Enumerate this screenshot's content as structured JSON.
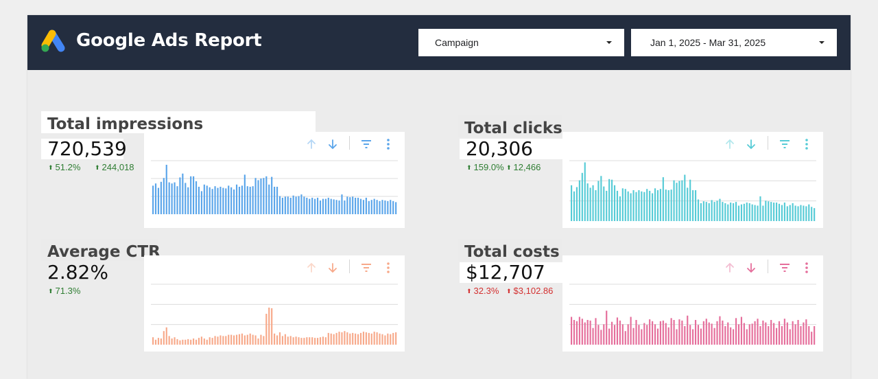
{
  "header": {
    "title": "Google Ads Report",
    "campaign_dropdown": {
      "label": "Campaign"
    },
    "date_dropdown": {
      "label": "Jan 1, 2025 - Mar 31, 2025"
    }
  },
  "colors": {
    "header_bg": "#232d3f",
    "impressions": "#5aa5ea",
    "clicks": "#56cbd6",
    "ctr": "#f7a98a",
    "costs": "#e56e9b",
    "positive": "#2e7d32",
    "negative": "#d32f2f"
  },
  "kpis": {
    "impressions": {
      "title": "Total impressions",
      "value": "720,539",
      "change_pct": "51.2%",
      "change_abs": "244,018",
      "direction": "up",
      "tone": "positive"
    },
    "clicks": {
      "title": "Total clicks",
      "value": "20,306",
      "change_pct": "159.0%",
      "change_abs": "12,466",
      "direction": "up",
      "tone": "positive"
    },
    "ctr": {
      "title": "Average CTR",
      "value": "2.82%",
      "change_pct": "71.3%",
      "direction": "up",
      "tone": "positive"
    },
    "costs": {
      "title": "Total costs",
      "value": "$12,707",
      "change_pct": "32.3%",
      "change_abs": "$3,102.86",
      "direction": "up",
      "tone": "negative"
    }
  },
  "toolbar_icons": [
    "sort-ascending-icon",
    "sort-descending-icon",
    "filter-icon",
    "more-options-icon"
  ],
  "chart_data": [
    {
      "type": "bar",
      "title": "Total impressions",
      "ylim": [
        0,
        100
      ],
      "values": [
        52,
        56,
        48,
        59,
        66,
        90,
        58,
        56,
        58,
        51,
        67,
        74,
        57,
        49,
        69,
        69,
        60,
        50,
        42,
        54,
        52,
        49,
        46,
        51,
        48,
        50,
        48,
        47,
        52,
        49,
        45,
        54,
        50,
        52,
        72,
        51,
        50,
        51,
        66,
        62,
        65,
        66,
        69,
        54,
        68,
        50,
        50,
        33,
        30,
        32,
        32,
        30,
        34,
        32,
        33,
        36,
        32,
        30,
        28,
        30,
        28,
        30,
        25,
        28,
        28,
        30,
        28,
        27,
        26,
        25,
        36,
        25,
        32,
        31,
        32,
        30,
        30,
        28,
        26,
        30,
        24,
        26,
        28,
        26,
        24,
        26,
        25,
        24,
        26,
        24,
        22
      ]
    },
    {
      "type": "bar",
      "title": "Total clicks",
      "ylim": [
        0,
        100
      ],
      "values": [
        58,
        48,
        55,
        66,
        78,
        95,
        61,
        54,
        58,
        50,
        65,
        73,
        56,
        49,
        68,
        67,
        58,
        49,
        40,
        53,
        52,
        48,
        45,
        50,
        47,
        50,
        48,
        47,
        52,
        49,
        45,
        53,
        50,
        52,
        71,
        51,
        50,
        51,
        66,
        62,
        65,
        66,
        75,
        54,
        67,
        50,
        50,
        35,
        29,
        32,
        31,
        29,
        34,
        31,
        33,
        36,
        31,
        29,
        27,
        30,
        29,
        31,
        25,
        27,
        28,
        30,
        29,
        27,
        26,
        25,
        40,
        25,
        33,
        32,
        31,
        30,
        30,
        28,
        26,
        30,
        24,
        26,
        29,
        25,
        24,
        26,
        25,
        24,
        27,
        23,
        21
      ]
    },
    {
      "type": "bar",
      "title": "Average CTR",
      "ylim": [
        0,
        100
      ],
      "values": [
        12,
        8,
        11,
        10,
        22,
        28,
        14,
        10,
        12,
        9,
        7,
        8,
        8,
        9,
        8,
        10,
        8,
        11,
        13,
        10,
        8,
        12,
        11,
        14,
        13,
        15,
        14,
        14,
        16,
        16,
        15,
        16,
        17,
        18,
        15,
        16,
        18,
        16,
        15,
        10,
        16,
        14,
        50,
        60,
        59,
        18,
        15,
        20,
        14,
        17,
        13,
        14,
        12,
        13,
        12,
        11,
        11,
        12,
        12,
        12,
        11,
        11,
        12,
        13,
        12,
        19,
        18,
        17,
        19,
        21,
        20,
        22,
        20,
        18,
        19,
        18,
        17,
        19,
        21,
        20,
        19,
        18,
        21,
        20,
        18,
        17,
        15,
        18,
        17,
        19,
        20
      ]
    },
    {
      "type": "bar",
      "title": "Total costs",
      "ylim": [
        0,
        100
      ],
      "values": [
        45,
        40,
        38,
        45,
        42,
        36,
        40,
        39,
        27,
        43,
        32,
        24,
        33,
        55,
        26,
        37,
        32,
        44,
        39,
        33,
        22,
        33,
        45,
        27,
        40,
        32,
        25,
        35,
        32,
        41,
        38,
        33,
        26,
        38,
        39,
        35,
        28,
        43,
        40,
        25,
        41,
        39,
        30,
        47,
        32,
        25,
        40,
        32,
        26,
        38,
        42,
        36,
        34,
        27,
        38,
        46,
        39,
        30,
        36,
        28,
        25,
        43,
        33,
        45,
        35,
        25,
        33,
        34,
        38,
        42,
        30,
        39,
        36,
        30,
        40,
        35,
        27,
        38,
        30,
        42,
        36,
        25,
        38,
        33,
        40,
        30,
        36,
        41,
        30,
        21,
        30
      ]
    }
  ]
}
